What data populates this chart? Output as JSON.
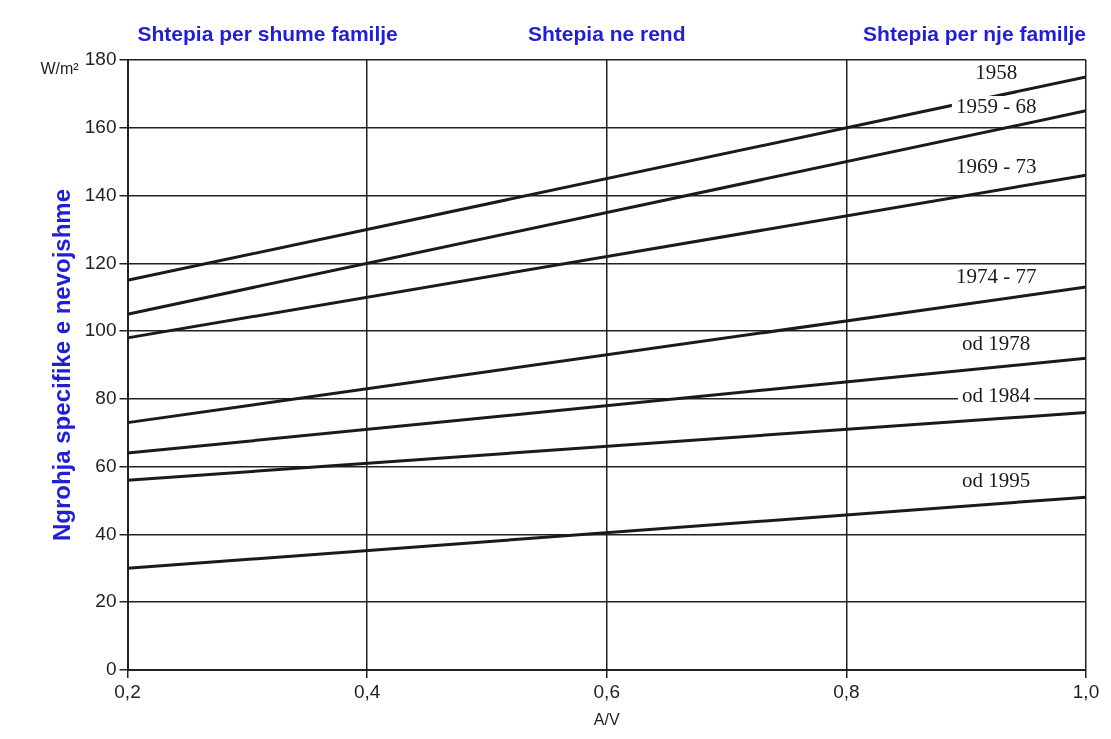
{
  "chart_data": {
    "type": "line",
    "xlabel": "A/V",
    "ylabel": "Ngrohja specifike e nevojshme",
    "annotations": [
      "Shtepia per shume familje",
      "Shtepia ne rend",
      "Shtepia per nje familje",
      "W/m²"
    ],
    "x": [
      0.2,
      1.0
    ],
    "xlim": [
      0.2,
      1.0
    ],
    "xticks": [
      {
        "value": 0.2,
        "label": "0,2"
      },
      {
        "value": 0.4,
        "label": "0,4"
      },
      {
        "value": 0.6,
        "label": "0,6"
      },
      {
        "value": 0.8,
        "label": "0,8"
      },
      {
        "value": 1.0,
        "label": "1,0"
      }
    ],
    "ylim": [
      0,
      180
    ],
    "yticks": [
      0,
      20,
      40,
      60,
      80,
      100,
      120,
      140,
      160,
      180
    ],
    "grid": true,
    "legend": false,
    "marker": "none",
    "line_style": "solid",
    "series": [
      {
        "name": "1958",
        "color": "#1a1a1a",
        "values": [
          115,
          175
        ]
      },
      {
        "name": "1959 - 68",
        "color": "#1a1a1a",
        "values": [
          105,
          165
        ]
      },
      {
        "name": "1969 - 73",
        "color": "#1a1a1a",
        "values": [
          98,
          146
        ]
      },
      {
        "name": "1974 - 77",
        "color": "#1a1a1a",
        "values": [
          73,
          113
        ]
      },
      {
        "name": "od 1978",
        "color": "#1a1a1a",
        "values": [
          64,
          92
        ]
      },
      {
        "name": "od 1984",
        "color": "#1a1a1a",
        "values": [
          56,
          76
        ]
      },
      {
        "name": "od 1995",
        "color": "#1a1a1a",
        "values": [
          30,
          51
        ]
      }
    ]
  }
}
